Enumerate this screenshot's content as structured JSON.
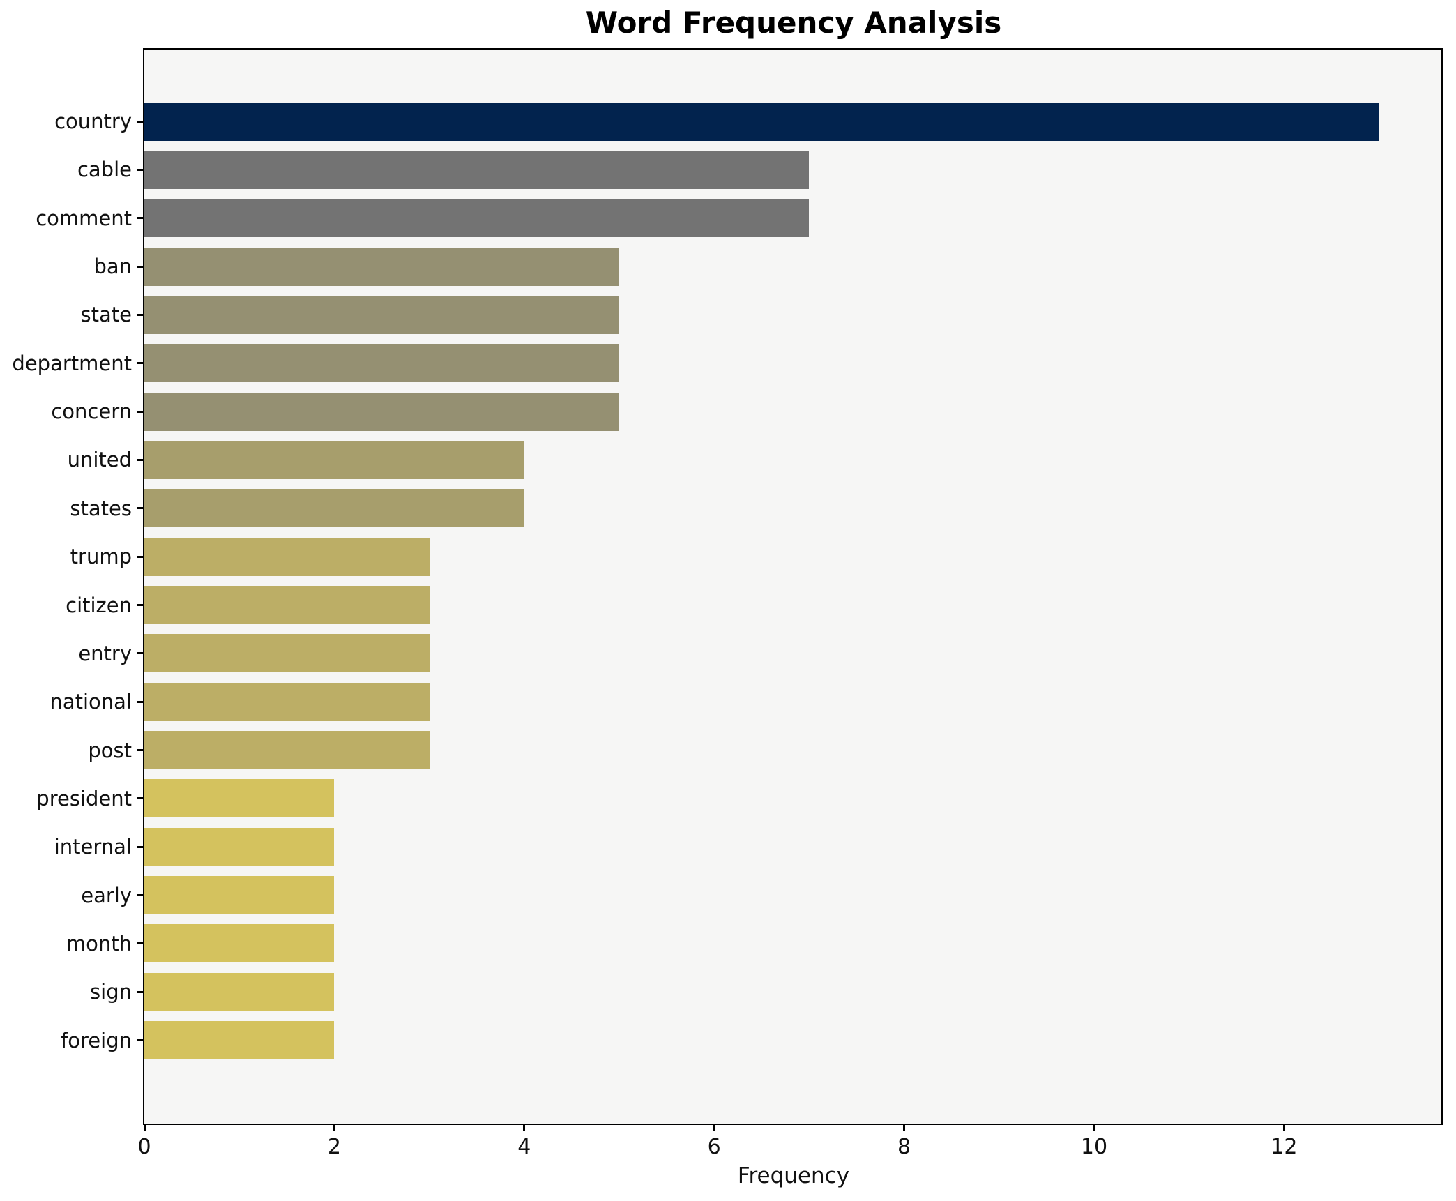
{
  "chart_data": {
    "type": "bar",
    "orientation": "horizontal",
    "title": "Word Frequency Analysis",
    "xlabel": "Frequency",
    "ylabel": "",
    "categories": [
      "country",
      "cable",
      "comment",
      "ban",
      "state",
      "department",
      "concern",
      "united",
      "states",
      "trump",
      "citizen",
      "entry",
      "national",
      "post",
      "president",
      "internal",
      "early",
      "month",
      "sign",
      "foreign"
    ],
    "values": [
      13,
      7,
      7,
      5,
      5,
      5,
      5,
      4,
      4,
      3,
      3,
      3,
      3,
      3,
      2,
      2,
      2,
      2,
      2,
      2
    ],
    "bar_colors": [
      "#02234e",
      "#737373",
      "#737373",
      "#959072",
      "#959072",
      "#959072",
      "#959072",
      "#a79e6c",
      "#a79e6c",
      "#bcae66",
      "#bcae66",
      "#bcae66",
      "#bcae66",
      "#bcae66",
      "#d4c25e",
      "#d4c25e",
      "#d4c25e",
      "#d4c25e",
      "#d4c25e",
      "#d4c25e"
    ],
    "x_ticks": [
      0,
      2,
      4,
      6,
      8,
      10,
      12
    ],
    "xlim": [
      0,
      13.65
    ],
    "grid": false,
    "legend": false,
    "plot_background": "#f6f6f5",
    "figure_background": "#ffffff",
    "spine_color": "#000000"
  }
}
